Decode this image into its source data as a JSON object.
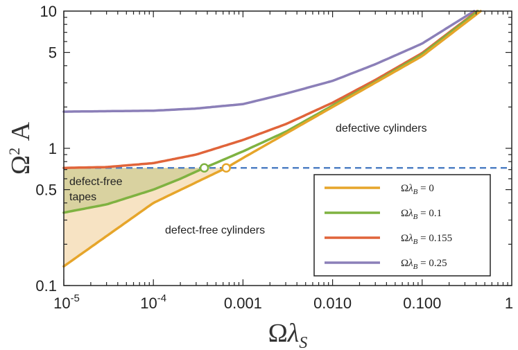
{
  "chart_data": {
    "type": "line",
    "xscale": "log",
    "yscale": "log",
    "xlim": [
      1e-05,
      1
    ],
    "ylim": [
      0.1,
      10
    ],
    "xlabel": "Ωλ_S",
    "ylabel": "Ω²A",
    "x_ticks": [
      {
        "value": 1e-05,
        "base": "10",
        "exp": "-5"
      },
      {
        "value": 0.0001,
        "base": "10",
        "exp": "-4"
      },
      {
        "value": 0.001,
        "label": "0.001"
      },
      {
        "value": 0.01,
        "label": "0.010"
      },
      {
        "value": 0.1,
        "label": "0.100"
      },
      {
        "value": 1,
        "label": "1"
      }
    ],
    "y_ticks": [
      {
        "value": 0.1,
        "label": "0.1"
      },
      {
        "value": 0.5,
        "label": "0.5"
      },
      {
        "value": 1,
        "label": "1"
      },
      {
        "value": 5,
        "label": "5"
      },
      {
        "value": 10,
        "label": "10"
      }
    ],
    "hline": {
      "y": 0.72,
      "color": "#4f7fc4",
      "style": "dashed"
    },
    "series": [
      {
        "name": "Ωλ_B = 0",
        "legend_value": "0",
        "color": "#e6a52a",
        "points": [
          [
            1e-05,
            0.138
          ],
          [
            0.0001,
            0.4
          ],
          [
            0.00065,
            0.72
          ],
          [
            0.001,
            0.85
          ],
          [
            0.01,
            2.0
          ],
          [
            0.1,
            4.7
          ],
          [
            0.45,
            10
          ]
        ]
      },
      {
        "name": "Ωλ_B = 0.1",
        "legend_value": "0.1",
        "color": "#7fb241",
        "points": [
          [
            1e-05,
            0.34
          ],
          [
            3e-05,
            0.39
          ],
          [
            0.0001,
            0.5
          ],
          [
            0.0002,
            0.6
          ],
          [
            0.00037,
            0.72
          ],
          [
            0.001,
            0.95
          ],
          [
            0.003,
            1.32
          ],
          [
            0.01,
            2.05
          ],
          [
            0.03,
            3.05
          ],
          [
            0.1,
            4.85
          ],
          [
            0.42,
            10
          ]
        ]
      },
      {
        "name": "Ωλ_B = 0.155",
        "legend_value": "0.155",
        "color": "#e0643a",
        "points": [
          [
            1e-05,
            0.72
          ],
          [
            3e-05,
            0.73
          ],
          [
            0.0001,
            0.78
          ],
          [
            0.0003,
            0.9
          ],
          [
            0.001,
            1.15
          ],
          [
            0.003,
            1.5
          ],
          [
            0.01,
            2.15
          ],
          [
            0.03,
            3.15
          ],
          [
            0.1,
            4.95
          ],
          [
            0.41,
            10
          ]
        ]
      },
      {
        "name": "Ωλ_B = 0.25",
        "legend_value": "0.25",
        "color": "#8b7fb8",
        "points": [
          [
            1e-05,
            1.85
          ],
          [
            0.0001,
            1.88
          ],
          [
            0.0003,
            1.95
          ],
          [
            0.001,
            2.1
          ],
          [
            0.003,
            2.5
          ],
          [
            0.01,
            3.1
          ],
          [
            0.03,
            4.1
          ],
          [
            0.1,
            5.8
          ],
          [
            0.38,
            10
          ]
        ]
      }
    ],
    "markers": [
      {
        "x": 0.00037,
        "y": 0.72,
        "color": "#7fb241",
        "style": "open-circle"
      },
      {
        "x": 0.00065,
        "y": 0.72,
        "color": "#e6a52a",
        "style": "open-circle"
      }
    ],
    "regions": [
      {
        "label_lines": [
          "defect-free",
          "tapes"
        ],
        "fill": "#d9d2a0"
      },
      {
        "label_lines": [
          "defect-free cylinders"
        ],
        "fill": "#f7e3c3"
      },
      {
        "label_lines": [
          "defective cylinders"
        ]
      }
    ],
    "legend": {
      "position": "lower-right",
      "prefix": "Ωλ_B ="
    },
    "grid": false
  }
}
